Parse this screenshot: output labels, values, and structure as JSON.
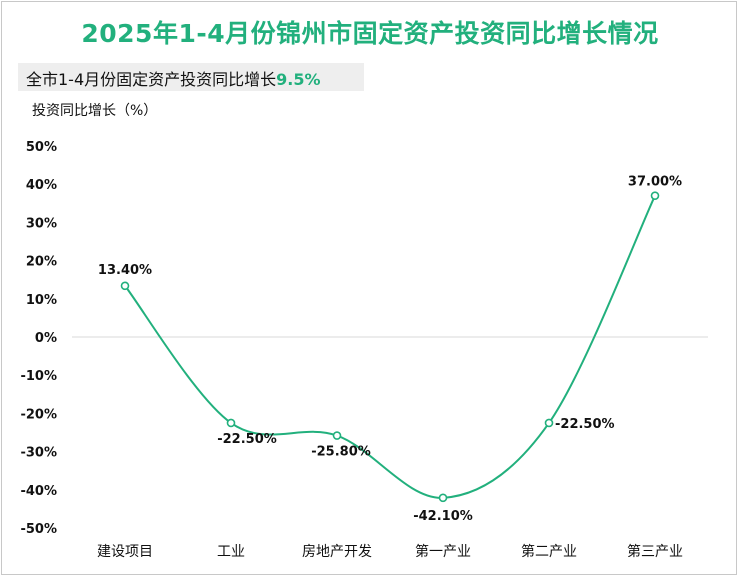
{
  "title": "2025年1-4月份锦州市固定资产投资同比增长情况",
  "banner": {
    "label": "全市1-4月份固定资产投资同比增长",
    "value": "9.5%"
  },
  "colors": {
    "title": "#22b07d",
    "line": "#22b07d",
    "banner_bg": "#eeeeee",
    "text": "#111111"
  },
  "chart_data": {
    "type": "line",
    "smooth": true,
    "ylabel": "投资同比增长（%）",
    "categories": [
      "建设项目",
      "工业",
      "房地产开发",
      "第一产业",
      "第二产业",
      "第三产业"
    ],
    "values": [
      13.4,
      -22.5,
      -25.8,
      -42.1,
      -22.5,
      37.0
    ],
    "data_labels": [
      "13.40%",
      "-22.50%",
      "-25.80%",
      "-42.10%",
      "-22.50%",
      "37.00%"
    ],
    "ylim": [
      -50,
      50
    ],
    "yticks": [
      50,
      40,
      30,
      20,
      10,
      0,
      -10,
      -20,
      -30,
      -40,
      -50
    ],
    "ytick_labels": [
      "50%",
      "40%",
      "30%",
      "20%",
      "10%",
      "0%",
      "-10%",
      "-20%",
      "-30%",
      "-40%",
      "-50%"
    ],
    "grid": false,
    "zero_line": true,
    "legend": "none"
  }
}
